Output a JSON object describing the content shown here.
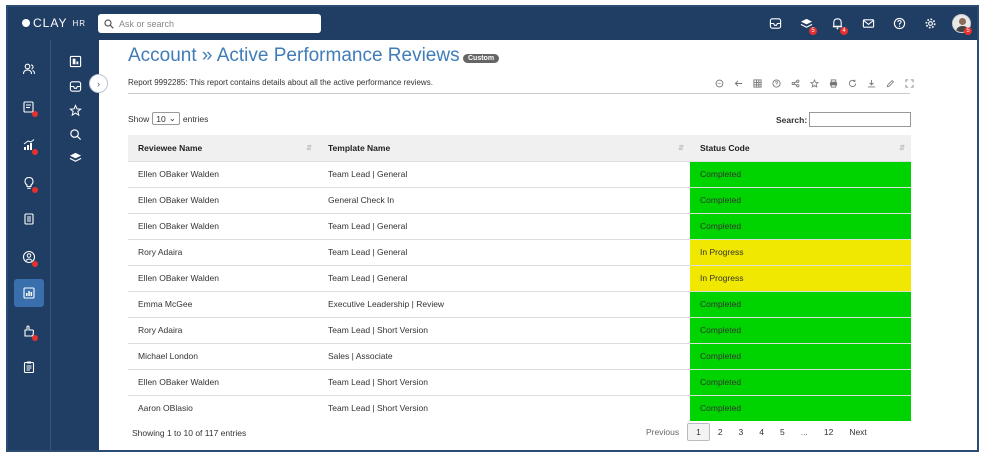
{
  "app": {
    "logo": "CLAY",
    "logo_suffix": "HR",
    "search_placeholder": "Ask or search"
  },
  "topbar": {
    "icons": [
      {
        "name": "inbox-icon",
        "badge": ""
      },
      {
        "name": "layers-icon",
        "badge": "5"
      },
      {
        "name": "bell-icon",
        "badge": "4"
      },
      {
        "name": "mail-icon",
        "badge": ""
      },
      {
        "name": "help-icon",
        "badge": ""
      },
      {
        "name": "gear-icon",
        "badge": ""
      }
    ],
    "avatar_badge": "5"
  },
  "sidebar": {
    "items": [
      {
        "name": "people-icon",
        "dot": false
      },
      {
        "name": "badge-icon",
        "dot": true
      },
      {
        "name": "chart-growth-icon",
        "dot": true
      },
      {
        "name": "lightbulb-icon",
        "dot": true
      },
      {
        "name": "documents-icon",
        "dot": false
      },
      {
        "name": "person-circle-icon",
        "dot": true
      },
      {
        "name": "report-icon",
        "dot": false,
        "active": true
      },
      {
        "name": "hand-icon",
        "dot": true
      },
      {
        "name": "clipboard-icon",
        "dot": false
      }
    ]
  },
  "subnav": {
    "items": [
      "dashboard-icon",
      "inbox-icon",
      "star-icon",
      "search-icon",
      "layers-icon"
    ]
  },
  "report": {
    "title": "Account » Active Performance Reviews",
    "badge": "Custom",
    "description": "Report 9992285: This report contains details about all the active performance reviews."
  },
  "toolbar": {
    "icons": [
      "chat-icon",
      "back-icon",
      "grid-icon",
      "help-icon",
      "share-icon",
      "star-icon",
      "print-icon",
      "refresh-icon",
      "download-icon",
      "edit-icon",
      "expand-icon"
    ]
  },
  "table_controls": {
    "show_label": "Show",
    "page_size": "10",
    "entries_label": "entries",
    "search_label": "Search:"
  },
  "table": {
    "columns": [
      "Reviewee Name",
      "Template Name",
      "Status Code"
    ],
    "rows": [
      {
        "name": "Ellen OBaker Walden",
        "template": "Team Lead | General",
        "status": "Completed"
      },
      {
        "name": "Ellen OBaker Walden",
        "template": "General Check In",
        "status": "Completed"
      },
      {
        "name": "Ellen OBaker Walden",
        "template": "Team Lead | General",
        "status": "Completed"
      },
      {
        "name": "Rory Adaira",
        "template": "Team Lead | General",
        "status": "In Progress"
      },
      {
        "name": "Ellen OBaker Walden",
        "template": "Team Lead | General",
        "status": "In Progress"
      },
      {
        "name": "Emma McGee",
        "template": "Executive Leadership | Review",
        "status": "Completed"
      },
      {
        "name": "Rory Adaira",
        "template": "Team Lead | Short Version",
        "status": "Completed"
      },
      {
        "name": "Michael London",
        "template": "Sales | Associate",
        "status": "Completed"
      },
      {
        "name": "Ellen OBaker Walden",
        "template": "Team Lead | Short Version",
        "status": "Completed"
      },
      {
        "name": "Aaron OBlasio",
        "template": "Team Lead | Short Version",
        "status": "Completed"
      }
    ],
    "status_colors": {
      "Completed": "#00d400",
      "In Progress": "#f0e800"
    }
  },
  "footer": {
    "info": "Showing 1 to 10 of 117 entries",
    "pagination": [
      "Previous",
      "1",
      "2",
      "3",
      "4",
      "5",
      "...",
      "12",
      "Next"
    ],
    "current_page": "1"
  }
}
